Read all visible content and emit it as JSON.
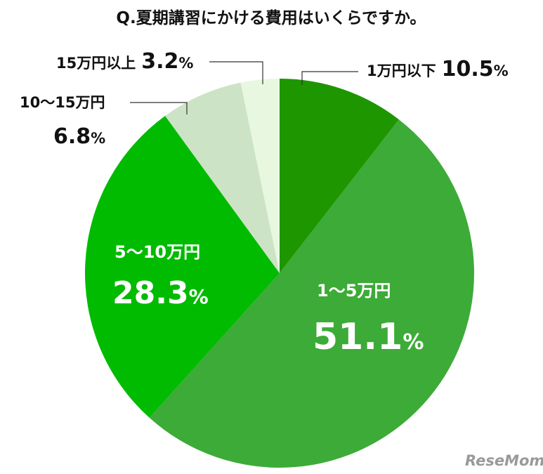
{
  "chart_data": {
    "type": "pie",
    "title": "Q.夏期講習にかける費用はいくらですか。",
    "unit": "%",
    "slices": [
      {
        "label": "1万円以下",
        "value": 10.5,
        "value_text": "10.5",
        "color": "#1e9600"
      },
      {
        "label": "1〜5万円",
        "value": 51.1,
        "value_text": "51.1",
        "color": "#3dab37"
      },
      {
        "label": "5〜10万円",
        "value": 28.3,
        "value_text": "28.3",
        "color": "#00bb00"
      },
      {
        "label": "10〜15万円",
        "value": 6.8,
        "value_text": "6.8",
        "color": "#cde3c6"
      },
      {
        "label": "15万円以上",
        "value": 3.2,
        "value_text": "3.2",
        "color": "#e8f8e0"
      }
    ]
  },
  "watermark": {
    "text": "ReseMom",
    "color": "#9a9a9a"
  }
}
